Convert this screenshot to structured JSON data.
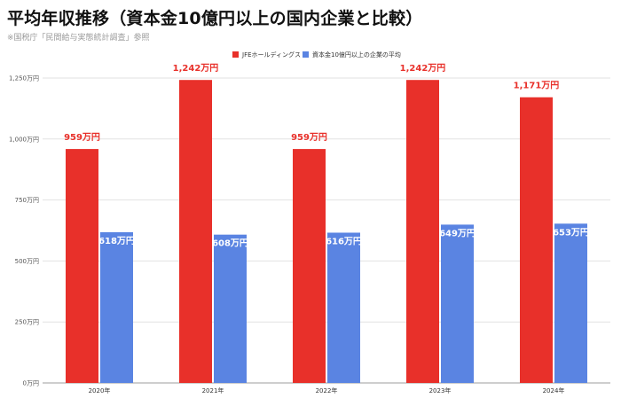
{
  "title": "平均年収推移（資本金10億円以上の国内企業と比較）",
  "subtitle": "※国税庁「民間給与実態統計調査」参照",
  "chart_data": {
    "type": "bar",
    "categories": [
      "2020年",
      "2021年",
      "2022年",
      "2023年",
      "2024年"
    ],
    "series": [
      {
        "name": "JFEホールディングス",
        "color": "#e8302a",
        "values": [
          959,
          1242,
          959,
          1242,
          1171
        ],
        "labels": [
          "959万円",
          "1,242万円",
          "959万円",
          "1,242万円",
          "1,171万円"
        ]
      },
      {
        "name": "資本金10億円以上の企業の平均",
        "color": "#5a84e2",
        "values": [
          618,
          608,
          616,
          649,
          653
        ],
        "labels": [
          "618万円",
          "608万円",
          "616万円",
          "649万円",
          "653万円"
        ]
      }
    ],
    "ylim": [
      0,
      1250
    ],
    "yticks": [
      0,
      250,
      500,
      750,
      1000,
      1250
    ],
    "ytick_labels": [
      "0万円",
      "250万円",
      "500万円",
      "750万円",
      "1,000万円",
      "1,250万円"
    ],
    "grid": true,
    "legend_position": "top-center"
  }
}
